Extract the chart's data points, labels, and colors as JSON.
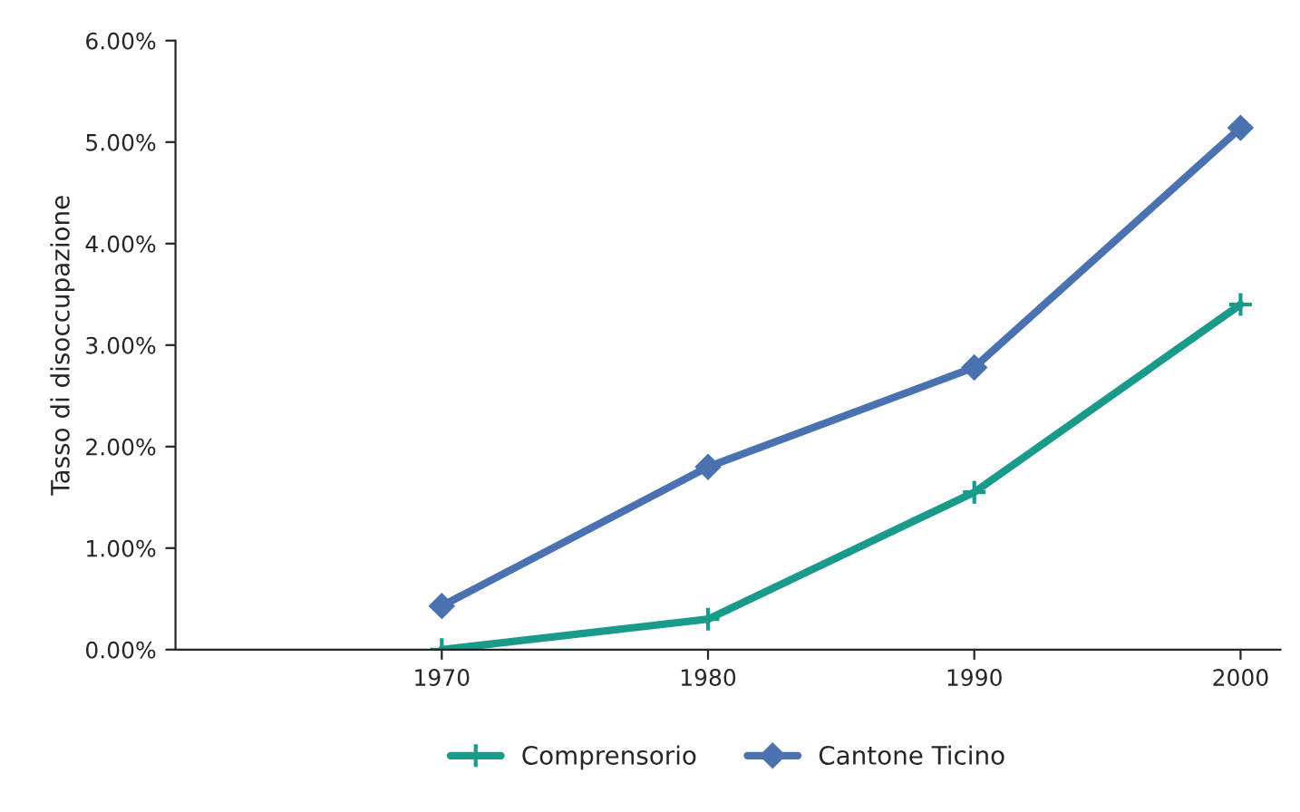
{
  "chart_data": {
    "type": "line",
    "ylabel": "Tasso di disoccupazione",
    "categories": [
      "1970",
      "1980",
      "1990",
      "2000"
    ],
    "series": [
      {
        "name": "Comprensorio",
        "color": "#1a9a8a",
        "marker": "cross",
        "values": [
          0.0,
          0.3,
          1.55,
          3.4
        ]
      },
      {
        "name": "Cantone Ticino",
        "color": "#4a72b0",
        "marker": "diamond",
        "values": [
          0.43,
          1.8,
          2.78,
          5.14
        ]
      }
    ],
    "ylim": [
      0,
      6
    ],
    "yticks": [
      {
        "value": 0,
        "label": "0.00%"
      },
      {
        "value": 1,
        "label": "1.00%"
      },
      {
        "value": 2,
        "label": "2.00%"
      },
      {
        "value": 3,
        "label": "3.00%"
      },
      {
        "value": 4,
        "label": "4.00%"
      },
      {
        "value": 5,
        "label": "5.00%"
      },
      {
        "value": 6,
        "label": "6.00%"
      }
    ],
    "grid": false,
    "legend": "bottom"
  }
}
